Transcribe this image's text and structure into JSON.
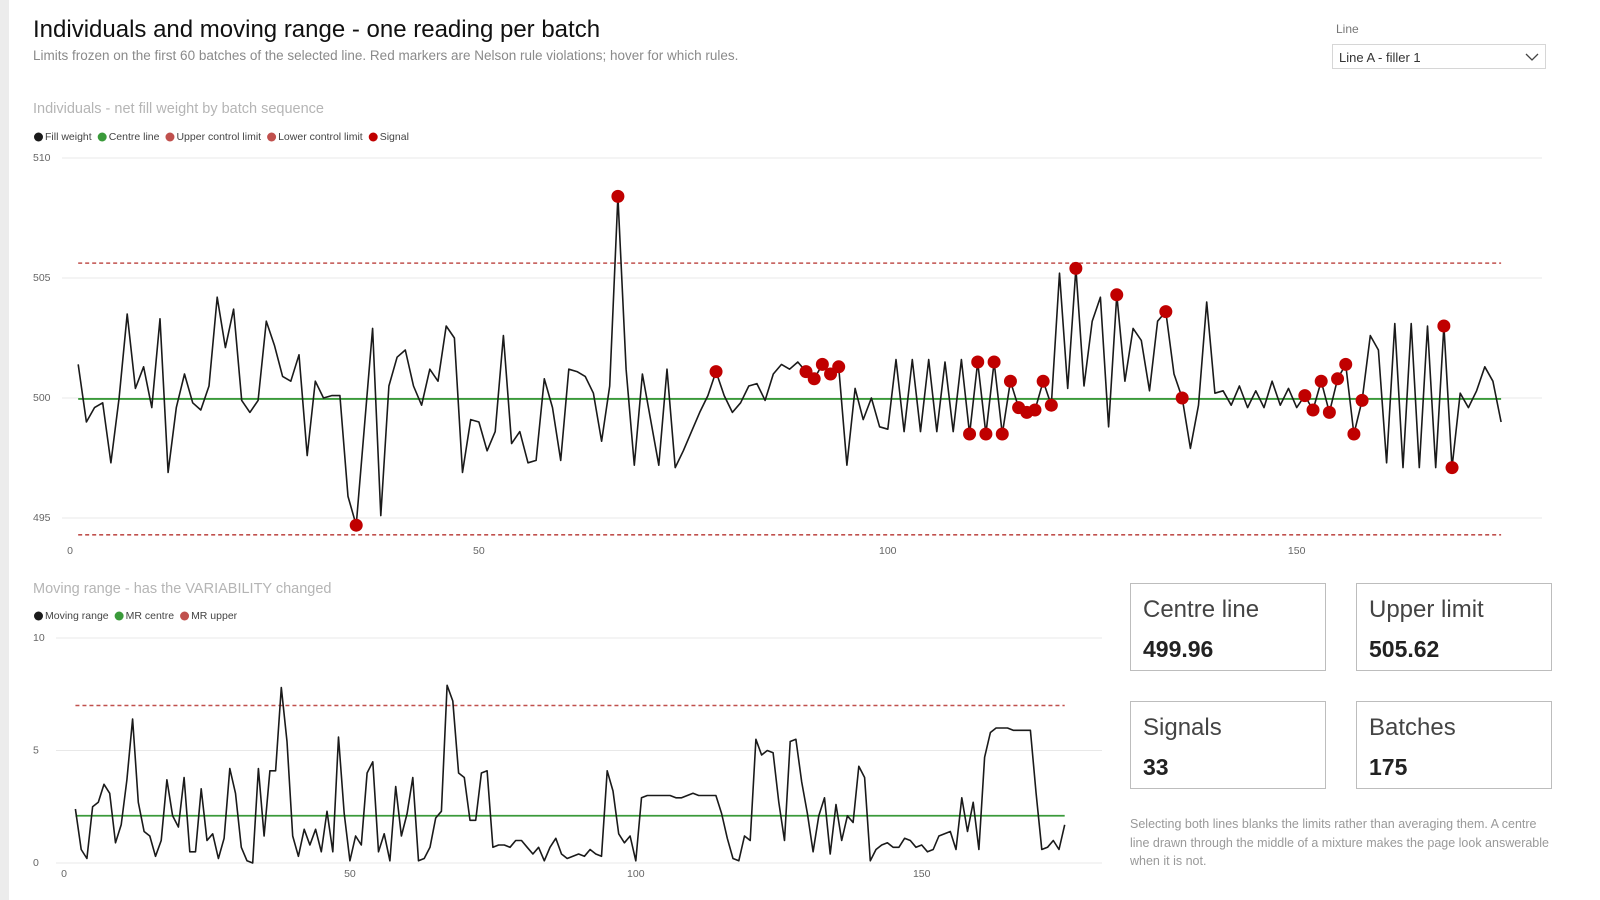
{
  "header": {
    "title": "Individuals and moving range - one reading per batch",
    "subtitle": "Limits frozen on the first 60 batches of the selected line. Red markers are Nelson rule violations; hover for which rules."
  },
  "filter": {
    "label": "Line",
    "value": "Line A - filler 1"
  },
  "chart_data": [
    {
      "type": "line",
      "title": "Individuals - net fill weight by batch sequence",
      "xlim": [
        0,
        180
      ],
      "ylim": [
        494,
        510
      ],
      "xticks": [
        0,
        50,
        100,
        150
      ],
      "yticks": [
        495,
        500,
        505,
        510
      ],
      "grid": true,
      "series": [
        {
          "name": "Fill weight",
          "color": "#1a1a1a",
          "x": [
            1,
            2,
            3,
            4,
            5,
            6,
            7,
            8,
            9,
            10,
            11,
            12,
            13,
            14,
            15,
            16,
            17,
            18,
            19,
            20,
            21,
            22,
            23,
            24,
            25,
            26,
            27,
            28,
            29,
            30,
            31,
            32,
            33,
            34,
            35,
            36,
            37,
            38,
            39,
            40,
            41,
            42,
            43,
            44,
            45,
            46,
            47,
            48,
            49,
            50,
            51,
            52,
            53,
            54,
            55,
            56,
            57,
            58,
            59,
            60,
            61,
            62,
            63,
            64,
            65,
            66,
            67,
            68,
            69,
            70,
            71,
            72,
            73,
            74,
            75,
            76,
            77,
            78,
            79,
            80,
            81,
            82,
            83,
            84,
            85,
            86,
            87,
            88,
            89,
            90,
            91,
            92,
            93,
            94,
            95,
            96,
            97,
            98,
            99,
            100,
            101,
            102,
            103,
            104,
            105,
            106,
            107,
            108,
            109,
            110,
            111,
            112,
            113,
            114,
            115,
            116,
            117,
            118,
            119,
            120,
            121,
            122,
            123,
            124,
            125,
            126,
            127,
            128,
            129,
            130,
            131,
            132,
            133,
            134,
            135,
            136,
            137,
            138,
            139,
            140,
            141,
            142,
            143,
            144,
            145,
            146,
            147,
            148,
            149,
            150,
            151,
            152,
            153,
            154,
            155,
            156,
            157,
            158,
            159,
            160,
            161,
            162,
            163,
            164,
            165,
            166,
            167,
            168,
            169,
            170,
            171,
            172,
            173,
            174,
            175
          ],
          "values": [
            501.4,
            499.0,
            499.6,
            499.8,
            497.3,
            500.0,
            503.5,
            500.4,
            501.3,
            499.6,
            503.3,
            496.9,
            499.6,
            501.0,
            499.8,
            499.5,
            500.5,
            504.2,
            502.1,
            503.7,
            499.9,
            499.4,
            499.9,
            503.2,
            502.2,
            500.9,
            500.7,
            501.8,
            497.6,
            500.7,
            500.0,
            500.1,
            500.1,
            495.9,
            494.7,
            498.8,
            502.9,
            495.1,
            500.5,
            501.7,
            502.0,
            500.5,
            499.7,
            501.2,
            500.7,
            503.0,
            502.5,
            496.9,
            499.1,
            499.0,
            497.8,
            498.6,
            502.6,
            498.1,
            498.6,
            497.3,
            497.4,
            500.8,
            499.6,
            497.4,
            501.2,
            501.1,
            500.9,
            500.2,
            498.2,
            500.5,
            508.4,
            501.2,
            497.2,
            501.0,
            499.1,
            497.2,
            501.2,
            497.1,
            497.8,
            498.6,
            499.4,
            500.1,
            501.1,
            500.1,
            499.4,
            499.8,
            500.5,
            500.6,
            499.9,
            501.0,
            501.4,
            501.2,
            501.5,
            501.1,
            500.8,
            501.4,
            501.0,
            501.3,
            497.2,
            500.4,
            499.1,
            500.0,
            498.8,
            498.7,
            501.6,
            498.6,
            501.6,
            498.6,
            501.6,
            498.6,
            501.5,
            498.6,
            501.6,
            498.5,
            501.5,
            498.5,
            501.5,
            498.5,
            500.7,
            499.6,
            499.4,
            499.5,
            500.7,
            499.7,
            505.2,
            500.4,
            505.4,
            500.5,
            503.2,
            504.2,
            498.8,
            504.3,
            500.7,
            502.9,
            502.4,
            500.3,
            503.2,
            503.6,
            501.0,
            500.0,
            497.9,
            499.7,
            504.0,
            500.2,
            500.3,
            499.7,
            500.5,
            499.6,
            500.3,
            499.6,
            500.7,
            499.7,
            500.4,
            499.6,
            500.1,
            499.5,
            500.7,
            499.4,
            500.8,
            501.4,
            498.5,
            499.9,
            502.6,
            502.0,
            497.3,
            503.1,
            497.1,
            503.1,
            497.1,
            503.0,
            497.1,
            503.0,
            497.1,
            500.2,
            499.6,
            500.3,
            501.3,
            500.7,
            499.0
          ]
        },
        {
          "name": "Centre line",
          "color": "#3a9a3a",
          "value": 499.96
        },
        {
          "name": "Upper control limit",
          "color": "#c0504d",
          "value": 505.62,
          "dashed": true
        },
        {
          "name": "Lower control limit",
          "color": "#c0504d",
          "value": 494.3,
          "dashed": true
        },
        {
          "name": "Signal",
          "color": "#c00000",
          "x": [
            35,
            67,
            79,
            90,
            91,
            92,
            93,
            94,
            110,
            111,
            112,
            113,
            114,
            115,
            116,
            117,
            118,
            119,
            120,
            123,
            128,
            134,
            136,
            151,
            152,
            153,
            154,
            155,
            156,
            157,
            158,
            168,
            169
          ]
        }
      ]
    },
    {
      "type": "line",
      "title": "Moving range - has the VARIABILITY changed",
      "xlim": [
        0,
        181
      ],
      "ylim": [
        0,
        10
      ],
      "xticks": [
        0,
        50,
        100,
        150
      ],
      "yticks": [
        0,
        5,
        10
      ],
      "grid": true,
      "series": [
        {
          "name": "Moving range",
          "color": "#1a1a1a",
          "x": [
            2,
            3,
            4,
            5,
            6,
            7,
            8,
            9,
            10,
            11,
            12,
            13,
            14,
            15,
            16,
            17,
            18,
            19,
            20,
            21,
            22,
            23,
            24,
            25,
            26,
            27,
            28,
            29,
            30,
            31,
            32,
            33,
            34,
            35,
            36,
            37,
            38,
            39,
            40,
            41,
            42,
            43,
            44,
            45,
            46,
            47,
            48,
            49,
            50,
            51,
            52,
            53,
            54,
            55,
            56,
            57,
            58,
            59,
            60,
            61,
            62,
            63,
            64,
            65,
            66,
            67,
            68,
            69,
            70,
            71,
            72,
            73,
            74,
            75,
            76,
            77,
            78,
            79,
            80,
            81,
            82,
            83,
            84,
            85,
            86,
            87,
            88,
            89,
            90,
            91,
            92,
            93,
            94,
            95,
            96,
            97,
            98,
            99,
            100,
            101,
            102,
            103,
            104,
            105,
            106,
            107,
            108,
            109,
            110,
            111,
            112,
            113,
            114,
            115,
            116,
            117,
            118,
            119,
            120,
            121,
            122,
            123,
            124,
            125,
            126,
            127,
            128,
            129,
            130,
            131,
            132,
            133,
            134,
            135,
            136,
            137,
            138,
            139,
            140,
            141,
            142,
            143,
            144,
            145,
            146,
            147,
            148,
            149,
            150,
            151,
            152,
            153,
            154,
            155,
            156,
            157,
            158,
            159,
            160,
            161,
            162,
            163,
            164,
            165,
            166,
            167,
            168,
            169,
            170,
            171,
            172,
            173,
            174,
            175
          ],
          "values": [
            2.4,
            0.6,
            0.2,
            2.5,
            2.7,
            3.5,
            3.1,
            0.9,
            1.7,
            3.7,
            6.4,
            2.7,
            1.4,
            1.2,
            0.3,
            1.0,
            3.7,
            2.1,
            1.6,
            3.8,
            0.5,
            0.5,
            3.3,
            1.0,
            1.3,
            0.2,
            1.1,
            4.2,
            3.1,
            0.7,
            0.1,
            0.0,
            4.2,
            1.2,
            4.1,
            4.1,
            7.8,
            5.4,
            1.2,
            0.3,
            1.5,
            0.8,
            1.5,
            0.5,
            2.3,
            0.5,
            5.6,
            2.2,
            0.1,
            1.2,
            0.8,
            4.0,
            4.5,
            0.5,
            1.3,
            0.1,
            3.4,
            1.2,
            2.2,
            3.8,
            0.1,
            0.2,
            0.7,
            2.0,
            2.3,
            7.9,
            7.2,
            4.0,
            3.8,
            1.9,
            1.9,
            4.0,
            4.1,
            0.7,
            0.8,
            0.8,
            0.7,
            1.0,
            1.0,
            0.7,
            0.4,
            0.7,
            0.1,
            0.7,
            1.1,
            0.4,
            0.2,
            0.3,
            0.4,
            0.3,
            0.6,
            0.4,
            0.3,
            4.1,
            3.2,
            1.3,
            0.9,
            1.2,
            0.1,
            2.9,
            3.0,
            3.0,
            3.0,
            3.0,
            3.0,
            2.9,
            2.9,
            3.0,
            3.1,
            3.0,
            3.0,
            3.0,
            3.0,
            2.2,
            1.1,
            0.2,
            0.1,
            1.2,
            1.0,
            5.5,
            4.8,
            5.0,
            4.9,
            2.7,
            1.0,
            5.4,
            5.5,
            3.6,
            2.2,
            0.5,
            2.1,
            2.9,
            0.4,
            2.6,
            1.0,
            2.1,
            1.8,
            4.3,
            3.8,
            0.1,
            0.6,
            0.8,
            0.9,
            0.7,
            0.7,
            1.1,
            1.0,
            0.7,
            0.8,
            0.5,
            0.6,
            1.2,
            1.3,
            1.4,
            0.6,
            2.9,
            1.4,
            2.7,
            0.6,
            4.7,
            5.8,
            6.0,
            6.0,
            6.0,
            5.9,
            5.9,
            5.9,
            5.9,
            3.1,
            0.6,
            0.7,
            1.0,
            0.6,
            1.7
          ]
        },
        {
          "name": "MR centre",
          "color": "#3a9a3a",
          "value": 2.1
        },
        {
          "name": "MR upper",
          "color": "#c0504d",
          "value": 7.0,
          "dashed": true
        }
      ]
    }
  ],
  "cards": [
    {
      "label": "Centre line",
      "value": 499.96
    },
    {
      "label": "Upper limit",
      "value": 505.62
    },
    {
      "label": "Signals",
      "value": 33
    },
    {
      "label": "Batches",
      "value": 175
    }
  ],
  "note": "Selecting both lines blanks the limits rather than averaging them. A centre line drawn through the middle of a mixture makes the page look answerable when it is not."
}
